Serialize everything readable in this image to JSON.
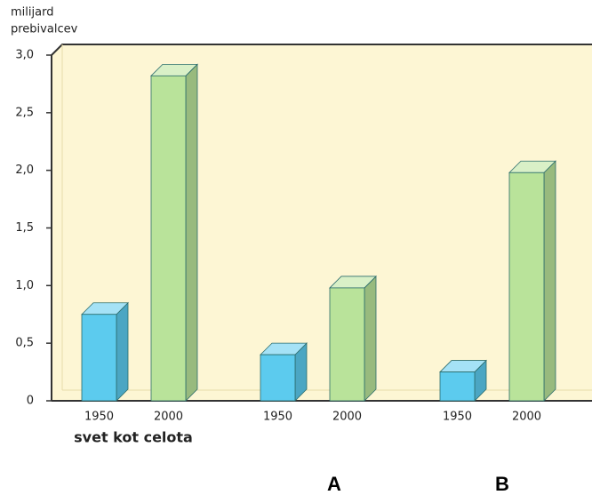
{
  "chart_data": {
    "type": "bar",
    "ylabel": [
      "milijard",
      "prebivalcev"
    ],
    "groups": [
      {
        "name": "svet kot celota",
        "categories": [
          "1950",
          "2000"
        ],
        "values": [
          0.75,
          2.82
        ]
      },
      {
        "name": "A",
        "categories": [
          "1950",
          "2000"
        ],
        "values": [
          0.4,
          0.98
        ]
      },
      {
        "name": "B",
        "categories": [
          "1950",
          "2000"
        ],
        "values": [
          0.25,
          1.98
        ]
      }
    ],
    "colors": [
      "#5ccbee",
      "#b9e39a"
    ],
    "ylim": [
      0,
      3
    ],
    "yticks": [
      0,
      {
        "value": 0.5,
        "label": "0,5"
      },
      {
        "value": 1,
        "label": "1,0"
      },
      {
        "value": 1.5,
        "label": "1,5"
      },
      {
        "value": 2,
        "label": "2,0"
      },
      {
        "value": 2.5,
        "label": "2,5"
      },
      {
        "value": 3,
        "label": "3,0"
      }
    ]
  }
}
